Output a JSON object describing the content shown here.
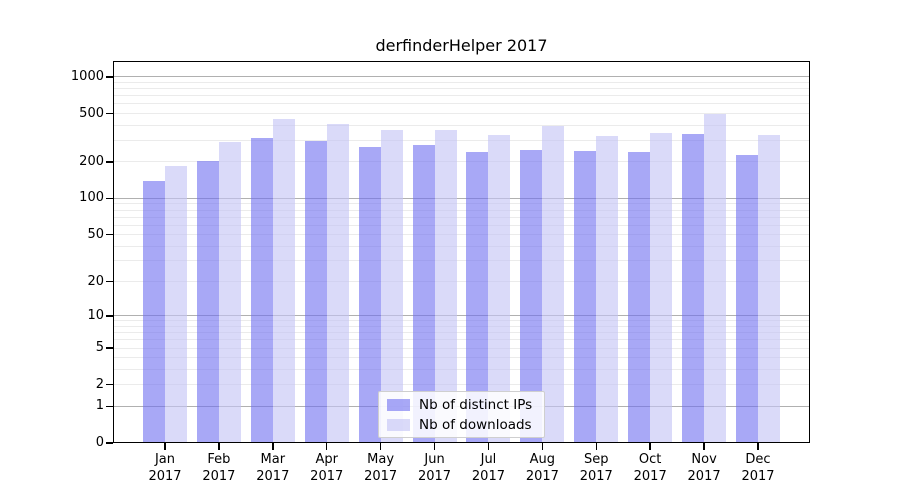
{
  "chart_data": {
    "type": "bar",
    "title": "derfinderHelper 2017",
    "categories": [
      "Jan",
      "Feb",
      "Mar",
      "Apr",
      "May",
      "Jun",
      "Jul",
      "Aug",
      "Sep",
      "Oct",
      "Nov",
      "Dec"
    ],
    "year_label": "2017",
    "yscale": "log1p",
    "yticks": [
      0,
      1,
      2,
      5,
      10,
      20,
      50,
      100,
      200,
      500,
      1000
    ],
    "ylim": [
      0,
      1400
    ],
    "grid": "horizontal; darker lines at powers of ten, faint minor lines between",
    "legend_position": "bottom-center-inside",
    "series": [
      {
        "name": "Nb of distinct IPs",
        "color": "rgba(110,110,240,0.6)",
        "values": [
          140,
          205,
          315,
          300,
          265,
          275,
          242,
          250,
          245,
          240,
          337,
          226
        ]
      },
      {
        "name": "Nb of downloads",
        "color": "rgba(196,196,246,0.62)",
        "values": [
          185,
          290,
          455,
          410,
          368,
          363,
          336,
          395,
          327,
          343,
          497,
          330
        ]
      }
    ],
    "colors": {
      "distinct_ips_solid": "#a8a8f6",
      "downloads_solid": "#dbdbf9",
      "major_grid": "#b0b0b0",
      "minor_grid": "#ebebeb",
      "axis": "#000000",
      "background": "#ffffff"
    }
  }
}
